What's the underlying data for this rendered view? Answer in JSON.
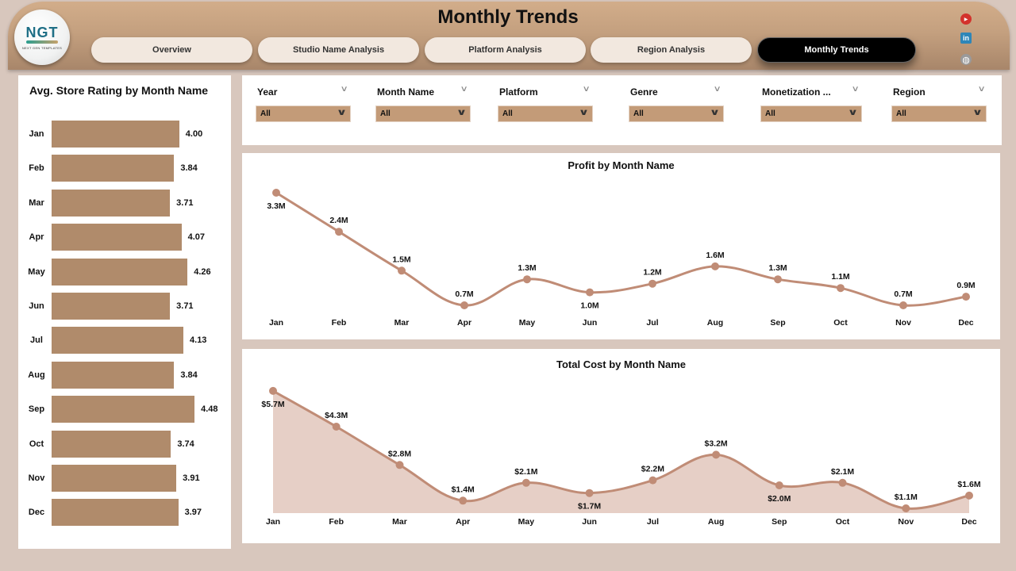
{
  "header": {
    "title": "Monthly Trends",
    "logo": {
      "text": "NGT",
      "subtext": "NEXT GEN TEMPLATES"
    },
    "tabs": [
      {
        "label": "Overview",
        "active": false
      },
      {
        "label": "Studio Name Analysis",
        "active": false
      },
      {
        "label": "Platform Analysis",
        "active": false
      },
      {
        "label": "Region Analysis",
        "active": false
      },
      {
        "label": "Monthly Trends",
        "active": true
      }
    ],
    "social": [
      {
        "name": "youtube-icon",
        "glyph": "▶",
        "color": "#d3322c"
      },
      {
        "name": "linkedin-icon",
        "glyph": "in",
        "color": "#2e86b8"
      },
      {
        "name": "website-icon",
        "glyph": "◍",
        "color": "#9a9a9a"
      }
    ]
  },
  "filters": [
    {
      "label": "Year",
      "value": "All"
    },
    {
      "label": "Month Name",
      "value": "All"
    },
    {
      "label": "Platform",
      "value": "All"
    },
    {
      "label": "Genre",
      "value": "All"
    },
    {
      "label": "Monetization ...",
      "value": "All"
    },
    {
      "label": "Region",
      "value": "All"
    }
  ],
  "colors": {
    "accent": "#b08b6b",
    "line": "#c08c76",
    "area_fill": "#e6cfc6",
    "filter_bg": "#c39b78",
    "background": "#dccdc4",
    "header_top": "#d2ad8a",
    "header_bottom": "#a8866a"
  },
  "chart_data": [
    {
      "type": "bar",
      "orientation": "horizontal",
      "title": "Avg. Store Rating by Month Name",
      "categories": [
        "Jan",
        "Feb",
        "Mar",
        "Apr",
        "May",
        "Jun",
        "Jul",
        "Aug",
        "Sep",
        "Oct",
        "Nov",
        "Dec"
      ],
      "values": [
        4.0,
        3.84,
        3.71,
        4.07,
        4.26,
        3.71,
        4.13,
        3.84,
        4.48,
        3.74,
        3.91,
        3.97
      ],
      "labels": [
        "4.00",
        "3.84",
        "3.71",
        "4.07",
        "4.26",
        "3.71",
        "4.13",
        "3.84",
        "4.48",
        "3.74",
        "3.91",
        "3.97"
      ],
      "xlabel": "",
      "ylabel": "",
      "grid": false
    },
    {
      "type": "line",
      "title": "Profit by Month Name",
      "categories": [
        "Jan",
        "Feb",
        "Mar",
        "Apr",
        "May",
        "Jun",
        "Jul",
        "Aug",
        "Sep",
        "Oct",
        "Nov",
        "Dec"
      ],
      "values": [
        3.3,
        2.4,
        1.5,
        0.7,
        1.3,
        1.0,
        1.2,
        1.6,
        1.3,
        1.1,
        0.7,
        0.9
      ],
      "labels": [
        "3.3M",
        "2.4M",
        "1.5M",
        "0.7M",
        "1.3M",
        "1.0M",
        "1.2M",
        "1.6M",
        "1.3M",
        "1.1M",
        "0.7M",
        "0.9M"
      ],
      "unit": "M",
      "xlabel": "",
      "ylabel": "",
      "grid": false
    },
    {
      "type": "area",
      "title": "Total Cost by Month Name",
      "categories": [
        "Jan",
        "Feb",
        "Mar",
        "Apr",
        "May",
        "Jun",
        "Jul",
        "Aug",
        "Sep",
        "Oct",
        "Nov",
        "Dec"
      ],
      "values": [
        5.7,
        4.3,
        2.8,
        1.4,
        2.1,
        1.7,
        2.2,
        3.2,
        2.0,
        2.1,
        1.1,
        1.6
      ],
      "labels": [
        "$5.7M",
        "$4.3M",
        "$2.8M",
        "$1.4M",
        "$2.1M",
        "$1.7M",
        "$2.2M",
        "$3.2M",
        "$2.0M",
        "$2.1M",
        "$1.1M",
        "$1.6M"
      ],
      "unit": "$M",
      "xlabel": "",
      "ylabel": "",
      "grid": false
    }
  ]
}
